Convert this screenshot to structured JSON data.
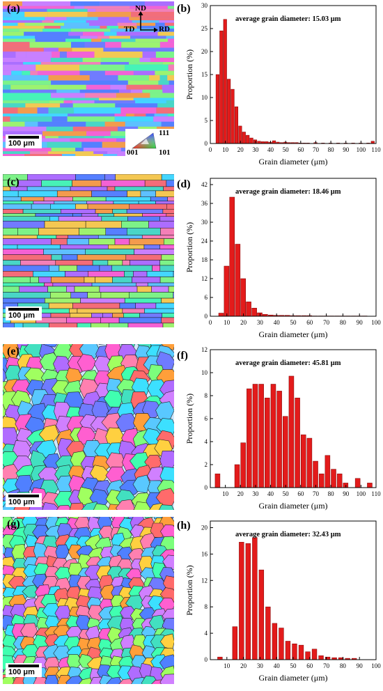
{
  "panels": [
    {
      "id": "a",
      "label": "(a)"
    },
    {
      "id": "b",
      "label": "(b)"
    },
    {
      "id": "c",
      "label": "(c)"
    },
    {
      "id": "d",
      "label": "(d)"
    },
    {
      "id": "e",
      "label": "(e)"
    },
    {
      "id": "f",
      "label": "(f)"
    },
    {
      "id": "g",
      "label": "(g)"
    },
    {
      "id": "h",
      "label": "(h)"
    }
  ],
  "scale_bar_label": "100 μm",
  "coordinate_system": {
    "nd": "ND",
    "td": "TD",
    "rd": "RD"
  },
  "ipf_legend": {
    "top": "111",
    "left": "001",
    "right": "101"
  },
  "colors": {
    "bar": "#e31b1b",
    "bar_edge": "#7a0000"
  },
  "chart_data": [
    {
      "type": "bar",
      "annotation": "average grain diameter: 15.03 μm",
      "xlabel": "Grain diameter (μm)",
      "ylabel": "Proportion (%)",
      "xlim": [
        0,
        110
      ],
      "ylim": [
        0,
        30
      ],
      "xticks": [
        0,
        10,
        20,
        30,
        40,
        50,
        60,
        70,
        80,
        90,
        100,
        110
      ],
      "yticks": [
        0,
        5,
        10,
        15,
        20,
        25,
        30
      ],
      "bin_width": 2.5,
      "x": [
        5,
        7.5,
        10,
        12.5,
        15,
        17.5,
        20,
        22.5,
        25,
        27.5,
        30,
        32.5,
        35,
        37.5,
        40,
        42.5,
        45,
        47.5,
        50,
        52.5,
        55,
        57.5,
        60,
        62.5,
        65,
        70,
        75,
        80,
        85,
        90,
        95,
        100,
        105,
        108
      ],
      "values": [
        15,
        24.5,
        27,
        14,
        11.8,
        8,
        3.8,
        2.5,
        1.8,
        1.2,
        0.8,
        0.5,
        0.4,
        0.4,
        0.3,
        0.6,
        0.3,
        0.2,
        0.3,
        0.2,
        0.2,
        0.2,
        0.1,
        0.1,
        0.1,
        0.2,
        0.1,
        0.1,
        0.1,
        0.1,
        0.1,
        0.1,
        0.1,
        0.5
      ]
    },
    {
      "type": "bar",
      "annotation": "average grain diameter: 18.46 μm",
      "xlabel": "Grain diameter (μm)",
      "ylabel": "Proportion (%)",
      "xlim": [
        0,
        100
      ],
      "ylim": [
        0,
        44
      ],
      "xticks": [
        0,
        10,
        20,
        30,
        40,
        50,
        60,
        70,
        80,
        90,
        100
      ],
      "yticks": [
        0,
        6,
        12,
        18,
        24,
        30,
        36,
        42
      ],
      "bin_width": 3.3,
      "x": [
        6.7,
        10,
        13.3,
        16.7,
        20,
        23.3,
        26.7,
        30,
        33.3,
        36.7,
        40,
        43.3,
        46.7,
        50,
        53.3,
        56.7,
        60,
        63.3,
        66.7,
        70,
        73.3,
        76.7,
        80,
        83.3,
        86.7,
        90,
        93.3
      ],
      "values": [
        1,
        16,
        38,
        23,
        12,
        4.6,
        2.6,
        1.1,
        0.6,
        0.4,
        0.3,
        0.3,
        0.3,
        0.2,
        0.2,
        0.2,
        0.2,
        0.1,
        0.1,
        0.1,
        0.1,
        0.1,
        0.1,
        0.1,
        0.1,
        0.1,
        0.1
      ]
    },
    {
      "type": "bar",
      "annotation": "average grain diameter: 45.81 μm",
      "xlabel": "Grain diameter (μm)",
      "ylabel": "Proportion (%)",
      "xlim": [
        0,
        110
      ],
      "ylim": [
        0,
        12
      ],
      "xticks": [
        10,
        20,
        30,
        40,
        50,
        60,
        70,
        80,
        90,
        100,
        110
      ],
      "yticks": [
        0,
        2,
        4,
        6,
        8,
        10,
        12
      ],
      "bin_width": 3.6,
      "x": [
        5,
        18,
        22,
        26,
        30,
        34,
        38,
        42,
        46,
        50,
        54,
        58,
        62,
        66,
        70,
        74,
        78,
        82,
        86,
        90,
        98,
        106
      ],
      "values": [
        1.2,
        2,
        3.9,
        8.6,
        9,
        9,
        7.8,
        9,
        8.4,
        6.2,
        9.7,
        7.8,
        4.6,
        4.3,
        2.3,
        1.2,
        2.8,
        1.6,
        1.2,
        0.4,
        0.8,
        0.4
      ]
    },
    {
      "type": "bar",
      "annotation": "average grain diameter: 32.43 μm",
      "xlabel": "Grain diameter (μm)",
      "ylabel": "Proportion (%)",
      "xlim": [
        0,
        100
      ],
      "ylim": [
        0,
        21
      ],
      "xticks": [
        10,
        20,
        30,
        40,
        50,
        60,
        70,
        80,
        90,
        100
      ],
      "yticks": [
        0,
        4,
        8,
        12,
        16,
        20
      ],
      "bin_width": 3.2,
      "x": [
        6,
        15,
        19,
        23,
        27,
        31,
        35,
        39,
        43,
        47,
        51,
        55,
        59,
        63,
        67,
        71,
        75,
        79,
        83,
        87
      ],
      "values": [
        0.4,
        5,
        17.8,
        17.6,
        18.5,
        13.6,
        8,
        5.5,
        4.8,
        2.8,
        2.4,
        2.2,
        1.2,
        1.6,
        0.6,
        0.4,
        0.3,
        0.3,
        0.2,
        0.2
      ]
    }
  ]
}
